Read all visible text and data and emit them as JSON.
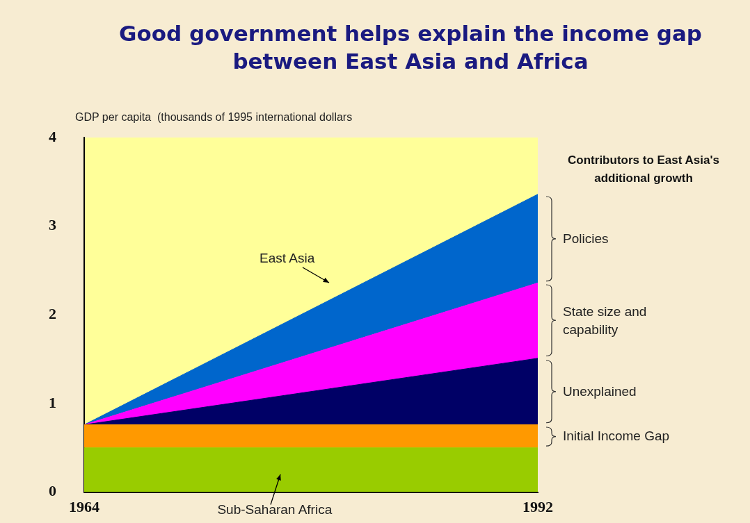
{
  "chart_data": {
    "type": "area",
    "stacked": true,
    "title": "Good government helps explain the income gap between East Asia and Africa",
    "ylabel": "GDP per capita  (thousands of 1995 international dollars",
    "legend_title": "Contributors to East Asia's additional growth",
    "legend": "right",
    "grid": false,
    "x": [
      1964,
      1992
    ],
    "xlim": [
      1964,
      1992
    ],
    "xticks": [
      1964,
      1992
    ],
    "ylim": [
      0,
      4
    ],
    "yticks": [
      0,
      1,
      2,
      3,
      4
    ],
    "series": [
      {
        "name": "Sub-Saharan Africa",
        "color": "#99cc00",
        "values": [
          0.5,
          0.5
        ]
      },
      {
        "name": "Initial Income Gap",
        "color": "#ff9900",
        "values": [
          0.26,
          0.26
        ]
      },
      {
        "name": "Unexplained",
        "color": "#000066",
        "values": [
          0,
          0.75
        ]
      },
      {
        "name": "State size and capability",
        "color": "#ff00ff",
        "values": [
          0,
          0.85
        ]
      },
      {
        "name": "Policies",
        "color": "#0066cc",
        "values": [
          0,
          1.0
        ]
      }
    ],
    "annotations": [
      "East Asia"
    ]
  }
}
